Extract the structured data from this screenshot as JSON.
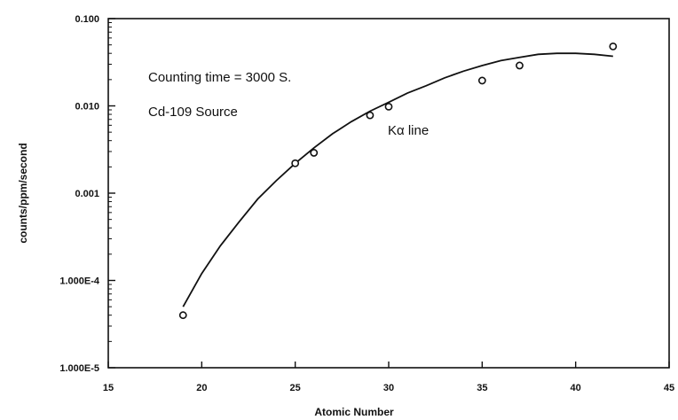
{
  "chart_data": {
    "type": "scatter",
    "xlabel": "Atomic Number",
    "ylabel": "counts/ppm/second",
    "xlim": [
      15,
      45
    ],
    "ylim": [
      1e-05,
      0.1
    ],
    "y_scale": "log",
    "grid": false,
    "x_ticks": [
      15,
      20,
      25,
      30,
      35,
      40,
      45
    ],
    "x_tick_labels": [
      "15",
      "20",
      "25",
      "30",
      "35",
      "40",
      "45"
    ],
    "y_ticks": [
      1e-05,
      0.0001,
      0.001,
      0.01,
      0.1
    ],
    "y_tick_labels": [
      "1.000E-5",
      "1.000E-4",
      "0.001",
      "0.010",
      "0.100"
    ],
    "annotations": [
      "Counting time = 3000 S.",
      "Cd-109 Source",
      "Kα line"
    ],
    "series": [
      {
        "type": "scatter",
        "marker": "open-circle",
        "x": [
          19,
          25,
          26,
          29,
          30,
          35,
          37,
          42
        ],
        "y": [
          4e-05,
          0.0022,
          0.0029,
          0.0078,
          0.0098,
          0.0195,
          0.029,
          0.048
        ]
      },
      {
        "type": "line",
        "x": [
          19,
          20,
          21,
          22,
          23,
          24,
          25,
          26,
          27,
          28,
          29,
          30,
          31,
          32,
          33,
          34,
          35,
          36,
          37,
          38,
          39,
          40,
          41,
          42
        ],
        "y": [
          5e-05,
          0.00012,
          0.00025,
          0.00047,
          0.00086,
          0.0014,
          0.0022,
          0.0033,
          0.0048,
          0.0066,
          0.0087,
          0.011,
          0.014,
          0.017,
          0.021,
          0.025,
          0.029,
          0.033,
          0.036,
          0.039,
          0.04,
          0.04,
          0.039,
          0.037
        ]
      }
    ]
  }
}
